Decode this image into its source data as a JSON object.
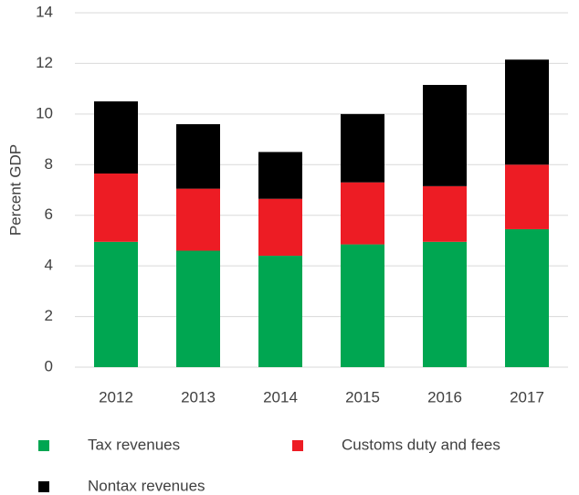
{
  "chart_data": {
    "type": "stacked_bar",
    "y_label": "Percent GDP",
    "categories": [
      "2012",
      "2013",
      "2014",
      "2015",
      "2016",
      "2017"
    ],
    "series": [
      {
        "name": "Tax revenues",
        "color": "#00a651",
        "values": [
          4.95,
          4.6,
          4.4,
          4.85,
          4.95,
          5.45
        ]
      },
      {
        "name": "Customs duty and fees",
        "color": "#ed1c24",
        "values": [
          2.7,
          2.45,
          2.25,
          2.45,
          2.2,
          2.55
        ]
      },
      {
        "name": "Nontax revenues",
        "color": "#000000",
        "values": [
          2.85,
          2.55,
          1.85,
          2.7,
          4.0,
          4.15
        ]
      }
    ],
    "ylim": [
      0,
      14
    ],
    "yticks": [
      0,
      2,
      4,
      6,
      8,
      10,
      12,
      14
    ],
    "grid": true,
    "legend": "bottom"
  }
}
